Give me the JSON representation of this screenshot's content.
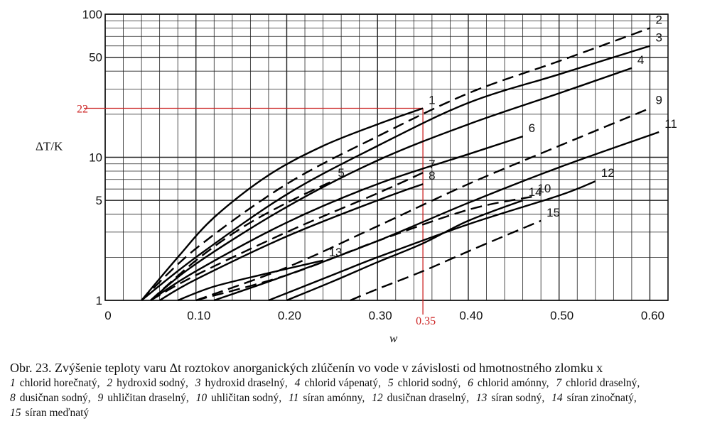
{
  "chart_data": {
    "type": "line",
    "yscale": "log",
    "xlim": [
      0,
      0.62
    ],
    "ylim": [
      1,
      100
    ],
    "xlabel": "w",
    "ylabel": "ΔT/K",
    "x_ticks": [
      "0",
      "0.10",
      "0.20",
      "0.30",
      "0.40",
      "0.50",
      "0.60"
    ],
    "x_tick_values": [
      0,
      0.1,
      0.2,
      0.3,
      0.4,
      0.5,
      0.6
    ],
    "y_ticks": [
      "1",
      "5",
      "10",
      "50",
      "100"
    ],
    "y_tick_values": [
      1,
      5,
      10,
      50,
      100
    ],
    "grid": true,
    "highlight": {
      "x": 0.35,
      "y": 22,
      "x_label": "0.35",
      "y_label": "22",
      "color": "#cc2222"
    },
    "series": [
      {
        "name": "1",
        "dash": false,
        "x": [
          0.04,
          0.08,
          0.12,
          0.18,
          0.24,
          0.3,
          0.35
        ],
        "y": [
          1,
          2.0,
          3.8,
          7.5,
          12,
          17,
          22
        ]
      },
      {
        "name": "2",
        "dash": true,
        "x": [
          0.04,
          0.1,
          0.2,
          0.3,
          0.4,
          0.5,
          0.6
        ],
        "y": [
          1,
          2.3,
          6.5,
          14,
          28,
          47,
          80
        ]
      },
      {
        "name": "3",
        "dash": false,
        "x": [
          0.04,
          0.1,
          0.2,
          0.3,
          0.4,
          0.5,
          0.6
        ],
        "y": [
          1,
          2.0,
          5.5,
          12,
          24,
          38,
          60
        ]
      },
      {
        "name": "4",
        "dash": false,
        "x": [
          0.05,
          0.1,
          0.2,
          0.3,
          0.4,
          0.5,
          0.58
        ],
        "y": [
          1,
          1.8,
          4.5,
          9.5,
          17,
          28,
          42
        ]
      },
      {
        "name": "5",
        "dash": true,
        "x": [
          0.05,
          0.1,
          0.15,
          0.2,
          0.25
        ],
        "y": [
          1,
          1.9,
          3.2,
          4.8,
          6.8
        ]
      },
      {
        "name": "6",
        "dash": false,
        "x": [
          0.05,
          0.1,
          0.2,
          0.3,
          0.4,
          0.46
        ],
        "y": [
          1,
          1.6,
          3.5,
          6.5,
          10.5,
          14
        ]
      },
      {
        "name": "7",
        "dash": true,
        "x": [
          0.05,
          0.1,
          0.2,
          0.3,
          0.35
        ],
        "y": [
          1,
          1.5,
          3.0,
          5.6,
          7.8
        ]
      },
      {
        "name": "8",
        "dash": false,
        "x": [
          0.06,
          0.1,
          0.2,
          0.3,
          0.35
        ],
        "y": [
          1,
          1.4,
          2.8,
          5.0,
          6.5
        ]
      },
      {
        "name": "9",
        "dash": true,
        "x": [
          0.1,
          0.2,
          0.3,
          0.4,
          0.5,
          0.6
        ],
        "y": [
          1,
          1.7,
          3.3,
          6.5,
          12,
          22
        ]
      },
      {
        "name": "10",
        "dash": true,
        "x": [
          0.1,
          0.2,
          0.3,
          0.4,
          0.47
        ],
        "y": [
          1,
          1.5,
          2.6,
          4.3,
          5.3
        ]
      },
      {
        "name": "11",
        "dash": false,
        "x": [
          0.12,
          0.2,
          0.3,
          0.4,
          0.5,
          0.61
        ],
        "y": [
          1,
          1.5,
          2.6,
          4.8,
          8.5,
          15
        ]
      },
      {
        "name": "12",
        "dash": false,
        "x": [
          0.18,
          0.25,
          0.3,
          0.4,
          0.5,
          0.54
        ],
        "y": [
          1,
          1.5,
          2.0,
          3.4,
          5.4,
          6.8
        ]
      },
      {
        "name": "13",
        "dash": false,
        "x": [
          0.08,
          0.12,
          0.18,
          0.24
        ],
        "y": [
          1,
          1.25,
          1.55,
          1.9
        ]
      },
      {
        "name": "14",
        "dash": false,
        "x": [
          0.2,
          0.25,
          0.3,
          0.35,
          0.4,
          0.46
        ],
        "y": [
          1,
          1.35,
          1.85,
          2.5,
          3.6,
          5.0
        ]
      },
      {
        "name": "15",
        "dash": true,
        "x": [
          0.27,
          0.3,
          0.35,
          0.4,
          0.45,
          0.48
        ],
        "y": [
          1,
          1.2,
          1.6,
          2.2,
          3.0,
          3.6
        ]
      }
    ]
  },
  "caption": {
    "title": "Obr. 23. Zvýšenie teploty varu Δt roztokov anorganických zlúčenín vo vode v závislosti od hmotnostného zlomku x",
    "legend": [
      {
        "num": "1",
        "name": "chlorid horečnatý,"
      },
      {
        "num": "2",
        "name": "hydroxid sodný,"
      },
      {
        "num": "3",
        "name": "hydroxid draselný,"
      },
      {
        "num": "4",
        "name": "chlorid vápenatý,"
      },
      {
        "num": "5",
        "name": "chlorid sodný,"
      },
      {
        "num": "6",
        "name": "chlorid amónny,"
      },
      {
        "num": "7",
        "name": "chlorid draselný,"
      },
      {
        "num": "8",
        "name": "dusičnan sodný,"
      },
      {
        "num": "9",
        "name": "uhličitan draselný,"
      },
      {
        "num": "10",
        "name": "uhličitan sodný,"
      },
      {
        "num": "11",
        "name": "síran amónny,"
      },
      {
        "num": "12",
        "name": "dusičnan draselný,"
      },
      {
        "num": "13",
        "name": "síran sodný,"
      },
      {
        "num": "14",
        "name": "síran zinočnatý,"
      },
      {
        "num": "15",
        "name": "síran meďnatý"
      }
    ]
  }
}
